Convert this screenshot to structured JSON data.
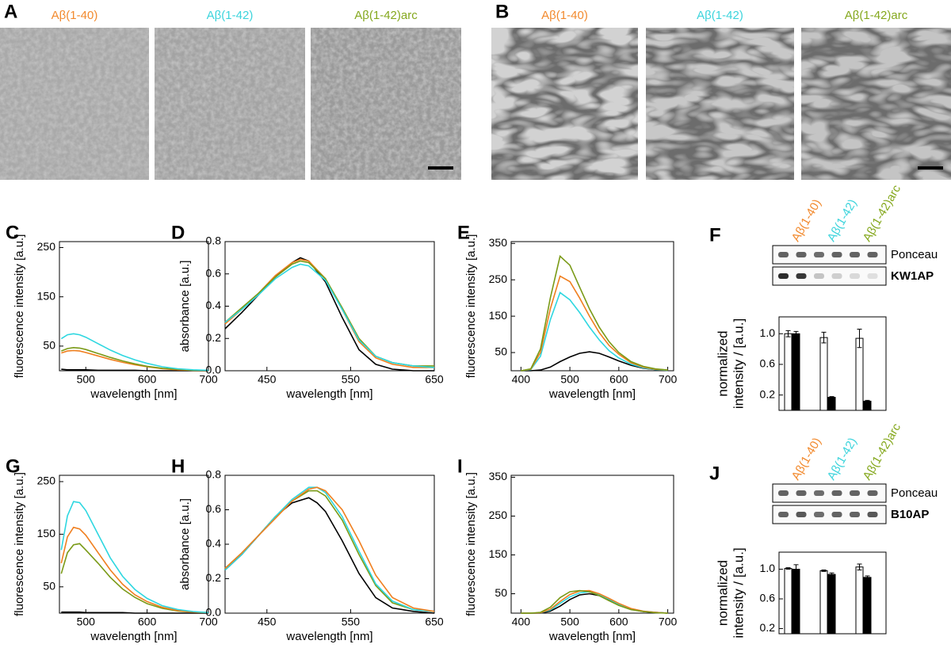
{
  "panels": [
    {
      "letter": "A",
      "labels": [
        "Aβ(1-40)",
        "Aβ(1-42)",
        "Aβ(1-42)arc"
      ],
      "label_colors": [
        "#f28a2e",
        "#3dd4dc",
        "#85a81e"
      ]
    },
    {
      "letter": "B",
      "labels": [
        "Aβ(1-40)",
        "Aβ(1-42)",
        "Aβ(1-42)arc"
      ],
      "label_colors": [
        "#f28a2e",
        "#3dd4dc",
        "#85a81e"
      ]
    }
  ],
  "chart_data": [
    {
      "type": "line",
      "panel": "C",
      "xlabel": "wavelength [nm]",
      "ylabel": "fluorescence intensity [a.u.]",
      "x": [
        460,
        470,
        480,
        490,
        500,
        520,
        540,
        560,
        580,
        600,
        625,
        650,
        675,
        700
      ],
      "xlim": [
        457,
        700
      ],
      "xticks": [
        500,
        600,
        700
      ],
      "ylim": [
        0,
        262
      ],
      "yticks": [
        50,
        150,
        250
      ],
      "series": [
        {
          "color": "#000000",
          "values": [
            3,
            2,
            2,
            2,
            2,
            1,
            1,
            1,
            1,
            0,
            0,
            0,
            0,
            0
          ]
        },
        {
          "color": "#f07f1f",
          "values": [
            36,
            40,
            41,
            40,
            37,
            30,
            23,
            17,
            12,
            8,
            4,
            2,
            1,
            1
          ]
        },
        {
          "color": "#7a9a17",
          "values": [
            40,
            45,
            47,
            46,
            43,
            35,
            27,
            20,
            14,
            9,
            5,
            3,
            1,
            1
          ]
        },
        {
          "color": "#2ed7e0",
          "values": [
            65,
            73,
            75,
            73,
            68,
            55,
            42,
            31,
            22,
            15,
            8,
            4,
            2,
            1
          ]
        }
      ]
    },
    {
      "type": "line",
      "panel": "D",
      "xlabel": "wavelength [nm]",
      "ylabel": "absorbance [a.u.]",
      "x": [
        400,
        420,
        440,
        460,
        480,
        490,
        500,
        520,
        540,
        560,
        580,
        600,
        625,
        650
      ],
      "xlim": [
        400,
        650
      ],
      "xticks": [
        450,
        550,
        650
      ],
      "ylim": [
        0,
        0.8
      ],
      "yticks": [
        {
          "value": 0,
          "label": "0.0"
        },
        0.2,
        0.4,
        0.6,
        0.8
      ],
      "series": [
        {
          "color": "#000000",
          "values": [
            0.26,
            0.36,
            0.47,
            0.58,
            0.67,
            0.7,
            0.68,
            0.55,
            0.33,
            0.13,
            0.04,
            0.01,
            0,
            0
          ]
        },
        {
          "color": "#f07f1f",
          "values": [
            0.29,
            0.38,
            0.48,
            0.59,
            0.67,
            0.69,
            0.68,
            0.57,
            0.38,
            0.18,
            0.08,
            0.04,
            0.02,
            0.02
          ]
        },
        {
          "color": "#7a9a17",
          "values": [
            0.3,
            0.39,
            0.48,
            0.58,
            0.66,
            0.68,
            0.67,
            0.57,
            0.39,
            0.2,
            0.09,
            0.05,
            0.03,
            0.03
          ]
        },
        {
          "color": "#2ed7e0",
          "values": [
            0.3,
            0.38,
            0.47,
            0.57,
            0.64,
            0.66,
            0.65,
            0.56,
            0.38,
            0.19,
            0.09,
            0.05,
            0.03,
            0.02
          ]
        }
      ]
    },
    {
      "type": "line",
      "panel": "E",
      "xlabel": "wavelength [nm]",
      "ylabel": "fluorescence intensity [a.u.]",
      "x": [
        400,
        420,
        440,
        460,
        480,
        500,
        520,
        540,
        560,
        580,
        600,
        625,
        650,
        675,
        700
      ],
      "xlim": [
        380,
        712
      ],
      "xticks": [
        400,
        500,
        600,
        700
      ],
      "ylim": [
        0,
        355
      ],
      "yticks": [
        50,
        150,
        250,
        350
      ],
      "series": [
        {
          "color": "#000000",
          "values": [
            0,
            0,
            2,
            10,
            25,
            38,
            48,
            52,
            48,
            38,
            27,
            15,
            7,
            3,
            1
          ]
        },
        {
          "color": "#2ed7e0",
          "values": [
            0,
            3,
            40,
            140,
            215,
            195,
            160,
            120,
            85,
            55,
            35,
            18,
            8,
            3,
            1
          ]
        },
        {
          "color": "#f07f1f",
          "values": [
            0,
            4,
            50,
            170,
            260,
            245,
            200,
            150,
            105,
            70,
            45,
            22,
            10,
            4,
            2
          ]
        },
        {
          "color": "#7a9a17",
          "values": [
            0,
            5,
            60,
            200,
            315,
            290,
            230,
            170,
            120,
            80,
            50,
            25,
            12,
            5,
            2
          ]
        }
      ]
    },
    {
      "type": "bar",
      "panel": "F",
      "ylabel": [
        "normalized",
        "intensity / [a.u.]"
      ],
      "categories": [
        "Aβ(1-40)",
        "Aβ(1-42)",
        "Aβ(1-42)arc"
      ],
      "category_colors": [
        "#f28a2e",
        "#3dd4dc",
        "#85a81e"
      ],
      "blots": [
        "Ponceau",
        "KW1AP"
      ],
      "ylim": [
        0,
        1.22
      ],
      "yticks": [
        0.2,
        0.6,
        {
          "value": 1,
          "label": "1.0"
        }
      ],
      "series": [
        {
          "color": "#ffffff",
          "values": [
            1.0,
            0.95,
            0.94
          ],
          "errors": [
            0.04,
            0.07,
            0.12
          ]
        },
        {
          "color": "#000000",
          "values": [
            1.0,
            0.17,
            0.12
          ],
          "errors": [
            0.03,
            0.01,
            0.01
          ]
        }
      ]
    },
    {
      "type": "line",
      "panel": "G",
      "xlabel": "wavelength [nm]",
      "ylabel": "fluorescence intensity [a.u.]",
      "x": [
        460,
        470,
        480,
        490,
        500,
        520,
        540,
        560,
        580,
        600,
        625,
        650,
        675,
        700
      ],
      "xlim": [
        457,
        700
      ],
      "xticks": [
        500,
        600,
        700
      ],
      "ylim": [
        0,
        262
      ],
      "yticks": [
        50,
        150,
        250
      ],
      "series": [
        {
          "color": "#000000",
          "values": [
            2,
            2,
            2,
            2,
            1,
            1,
            1,
            1,
            0,
            0,
            0,
            0,
            0,
            0
          ]
        },
        {
          "color": "#7a9a17",
          "values": [
            75,
            115,
            130,
            132,
            120,
            95,
            68,
            46,
            30,
            18,
            9,
            4,
            2,
            1
          ]
        },
        {
          "color": "#f07f1f",
          "values": [
            95,
            145,
            163,
            160,
            148,
            115,
            82,
            55,
            35,
            22,
            11,
            5,
            2,
            1
          ]
        },
        {
          "color": "#2ed7e0",
          "values": [
            120,
            185,
            212,
            210,
            195,
            150,
            105,
            70,
            45,
            28,
            14,
            7,
            3,
            1
          ]
        }
      ]
    },
    {
      "type": "line",
      "panel": "H",
      "xlabel": "wavelength [nm]",
      "ylabel": "absorbance [a.u.]",
      "x": [
        400,
        420,
        440,
        460,
        480,
        500,
        510,
        520,
        540,
        560,
        580,
        600,
        625,
        650
      ],
      "xlim": [
        400,
        650
      ],
      "xticks": [
        450,
        550,
        650
      ],
      "ylim": [
        0,
        0.8
      ],
      "yticks": [
        {
          "value": 0,
          "label": "0.0"
        },
        0.2,
        0.4,
        0.6,
        0.8
      ],
      "series": [
        {
          "color": "#000000",
          "values": [
            0.25,
            0.34,
            0.45,
            0.56,
            0.64,
            0.67,
            0.64,
            0.59,
            0.42,
            0.23,
            0.09,
            0.03,
            0.01,
            0
          ]
        },
        {
          "color": "#7a9a17",
          "values": [
            0.26,
            0.35,
            0.45,
            0.56,
            0.65,
            0.71,
            0.71,
            0.68,
            0.54,
            0.34,
            0.16,
            0.06,
            0.02,
            0.01
          ]
        },
        {
          "color": "#2ed7e0",
          "values": [
            0.25,
            0.34,
            0.45,
            0.56,
            0.66,
            0.73,
            0.73,
            0.7,
            0.56,
            0.36,
            0.17,
            0.07,
            0.02,
            0.01
          ]
        },
        {
          "color": "#f07f1f",
          "values": [
            0.26,
            0.35,
            0.45,
            0.55,
            0.65,
            0.72,
            0.73,
            0.71,
            0.6,
            0.42,
            0.22,
            0.09,
            0.03,
            0.01
          ]
        }
      ]
    },
    {
      "type": "line",
      "panel": "I",
      "xlabel": "wavelength [nm]",
      "ylabel": "fluorescence intensity [a.u.]",
      "x": [
        400,
        420,
        440,
        460,
        480,
        500,
        520,
        540,
        560,
        580,
        600,
        625,
        650,
        675,
        700
      ],
      "xlim": [
        380,
        712
      ],
      "xticks": [
        400,
        500,
        600,
        700
      ],
      "ylim": [
        0,
        355
      ],
      "yticks": [
        50,
        150,
        250,
        350
      ],
      "series": [
        {
          "color": "#000000",
          "values": [
            0,
            0,
            0,
            5,
            18,
            35,
            47,
            50,
            45,
            34,
            22,
            10,
            4,
            2,
            0
          ]
        },
        {
          "color": "#2ed7e0",
          "values": [
            0,
            0,
            1,
            8,
            25,
            42,
            52,
            55,
            48,
            36,
            23,
            11,
            5,
            2,
            0
          ]
        },
        {
          "color": "#f07f1f",
          "values": [
            0,
            0,
            1,
            10,
            30,
            48,
            57,
            58,
            50,
            38,
            25,
            12,
            5,
            2,
            0
          ]
        },
        {
          "color": "#7a9a17",
          "values": [
            0,
            0,
            2,
            15,
            40,
            55,
            58,
            55,
            45,
            32,
            20,
            9,
            4,
            1,
            0
          ]
        }
      ]
    },
    {
      "type": "bar",
      "panel": "J",
      "ylabel": [
        "normalized",
        "intensity / [a.u.]"
      ],
      "categories": [
        "Aβ(1-40)",
        "Aβ(1-42)",
        "Aβ(1-42)arc"
      ],
      "category_colors": [
        "#f28a2e",
        "#3dd4dc",
        "#85a81e"
      ],
      "blots": [
        "Ponceau",
        "B10AP"
      ],
      "ylim": [
        0.13,
        1.23
      ],
      "yticks": [
        0.2,
        0.6,
        {
          "value": 1,
          "label": "1.0"
        }
      ],
      "series": [
        {
          "color": "#ffffff",
          "values": [
            1.01,
            0.98,
            1.03
          ],
          "errors": [
            0.01,
            0.01,
            0.04
          ]
        },
        {
          "color": "#000000",
          "values": [
            1.0,
            0.93,
            0.89
          ],
          "errors": [
            0.06,
            0.02,
            0.02
          ]
        }
      ]
    }
  ]
}
